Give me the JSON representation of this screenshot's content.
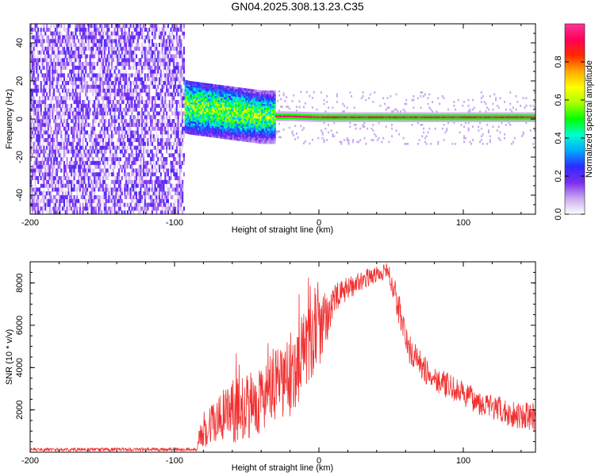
{
  "title": "GN04.2025.308.13.23.C35",
  "chart_data": [
    {
      "type": "heatmap",
      "name": "spectrogram",
      "xlabel": "Height of straight line (km)",
      "ylabel": "Frequency (Hz)",
      "xlim": [
        -200,
        150
      ],
      "ylim": [
        -50,
        50
      ],
      "xticks": [
        -200,
        -100,
        0,
        100
      ],
      "xtick_labels": [
        "-200",
        "-100",
        "0",
        "100"
      ],
      "yticks": [
        -40,
        -20,
        0,
        20,
        40
      ],
      "ytick_labels": [
        "-40",
        "-20",
        "0",
        "20",
        "40"
      ],
      "noise_region_x": [
        -200,
        -93
      ],
      "signal_ridge": [
        {
          "x": -100,
          "f": 8
        },
        {
          "x": -90,
          "f": 6
        },
        {
          "x": -80,
          "f": 5
        },
        {
          "x": -70,
          "f": 4
        },
        {
          "x": -60,
          "f": 3
        },
        {
          "x": -50,
          "f": 2
        },
        {
          "x": -40,
          "f": 1
        },
        {
          "x": -20,
          "f": 1
        },
        {
          "x": 0,
          "f": 0.5
        },
        {
          "x": 150,
          "f": 0.5
        }
      ],
      "colorbar": {
        "label": "Normalized spectral amplitude",
        "range": [
          0,
          1
        ],
        "ticks": [
          0,
          0.2,
          0.4,
          0.6,
          0.8
        ],
        "tick_labels": [
          "0.0",
          "0.2",
          "0.4",
          "0.6",
          "0.8"
        ],
        "colors": [
          "#ffffff",
          "#c9a8f0",
          "#7b2cf0",
          "#2c2cff",
          "#00aaff",
          "#00ffcc",
          "#00ff00",
          "#aaff00",
          "#ffff00",
          "#ffaa00",
          "#ff2a00",
          "#ff0055",
          "#ff3399"
        ]
      }
    },
    {
      "type": "line",
      "name": "snr",
      "xlabel": "Height of straight line (km)",
      "ylabel": "SNR (10 * v/v)",
      "xlim": [
        -200,
        150
      ],
      "ylim": [
        0,
        9000
      ],
      "xticks": [
        -200,
        -100,
        0,
        100
      ],
      "xtick_labels": [
        "-200",
        "-100",
        "0",
        "100"
      ],
      "yticks": [
        2000,
        4000,
        6000,
        8000
      ],
      "ytick_labels": [
        "2000",
        "4000",
        "6000",
        "8000"
      ],
      "color": "#f03030",
      "envelope": [
        {
          "x": -200,
          "lo": 50,
          "hi": 200
        },
        {
          "x": -85,
          "lo": 50,
          "hi": 220
        },
        {
          "x": -82,
          "lo": 200,
          "hi": 1500
        },
        {
          "x": -70,
          "lo": 300,
          "hi": 2800
        },
        {
          "x": -60,
          "lo": 400,
          "hi": 3400
        },
        {
          "x": -50,
          "lo": 600,
          "hi": 3600
        },
        {
          "x": -40,
          "lo": 900,
          "hi": 4200
        },
        {
          "x": -30,
          "lo": 1200,
          "hi": 4800
        },
        {
          "x": -20,
          "lo": 1600,
          "hi": 5600
        },
        {
          "x": -10,
          "lo": 2800,
          "hi": 6800
        },
        {
          "x": 0,
          "lo": 3600,
          "hi": 7300
        },
        {
          "x": 10,
          "lo": 6400,
          "hi": 7900
        },
        {
          "x": 20,
          "lo": 7200,
          "hi": 8300
        },
        {
          "x": 30,
          "lo": 7700,
          "hi": 8600
        },
        {
          "x": 40,
          "lo": 8000,
          "hi": 8800
        },
        {
          "x": 48,
          "lo": 8200,
          "hi": 8950
        },
        {
          "x": 55,
          "lo": 6000,
          "hi": 7800
        },
        {
          "x": 62,
          "lo": 4200,
          "hi": 5600
        },
        {
          "x": 75,
          "lo": 3100,
          "hi": 4400
        },
        {
          "x": 90,
          "lo": 2500,
          "hi": 3700
        },
        {
          "x": 110,
          "lo": 1800,
          "hi": 3000
        },
        {
          "x": 130,
          "lo": 1200,
          "hi": 2500
        },
        {
          "x": 150,
          "lo": 1000,
          "hi": 2300
        }
      ]
    }
  ]
}
